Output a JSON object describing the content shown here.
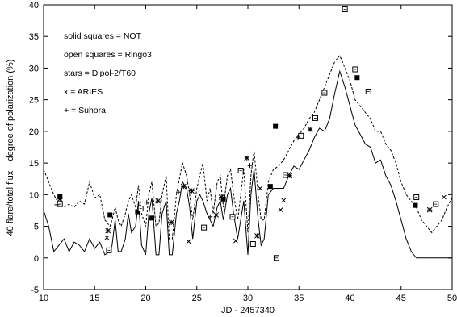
{
  "chart_data": {
    "type": "line",
    "xlabel": "JD - 2457340",
    "ylabel": "40 flare/total flux    degree of polarization (%)",
    "xlim": [
      10,
      50
    ],
    "ylim": [
      -5,
      40
    ],
    "xticks": [
      "10",
      "15",
      "20",
      "25",
      "30",
      "35",
      "40",
      "45",
      "50"
    ],
    "yticks": [
      "-5",
      "0",
      "5",
      "10",
      "15",
      "20",
      "25",
      "30",
      "35",
      "40"
    ],
    "grid": false,
    "legend_text": [
      "solid squares = NOT",
      "open squares = Ringo3",
      "stars = Dipol-2/T60",
      "x = ARIES",
      "+ = Suhora"
    ],
    "series": [
      {
        "style": "solid",
        "x": [
          10,
          10.5,
          11,
          11.5,
          12,
          12.5,
          13,
          13.5,
          14,
          14.5,
          15,
          15.5,
          16,
          16.5,
          16.7,
          17,
          17.3,
          17.6,
          18,
          18.3,
          18.6,
          19,
          19.3,
          19.6,
          20,
          20.3,
          20.6,
          21,
          21.3,
          21.6,
          22,
          22.3,
          22.6,
          23,
          23.3,
          23.6,
          24,
          24.3,
          24.6,
          25,
          25.3,
          25.6,
          26,
          26.3,
          26.6,
          27,
          27.3,
          27.6,
          28,
          28.3,
          28.6,
          29,
          29.3,
          29.6,
          30,
          30.3,
          30.6,
          31,
          31.3,
          31.6,
          32,
          32.5,
          33,
          33.5,
          34,
          34.5,
          35,
          35.5,
          36,
          36.5,
          37,
          37.5,
          38,
          38.5,
          39,
          39.5,
          40,
          40.5,
          41,
          41.5,
          42,
          42.5,
          43,
          43.5,
          44,
          44.5,
          45,
          45.5,
          46,
          46.5,
          47,
          48,
          49,
          50
        ],
        "values": [
          7.5,
          5,
          1,
          2,
          3,
          1,
          2.5,
          2,
          1,
          3,
          1.5,
          2.5,
          0.5,
          1,
          2,
          6,
          1,
          1,
          3,
          7,
          4,
          5,
          9,
          2,
          0.5,
          7,
          9.5,
          0.5,
          0.5,
          7,
          9,
          0.5,
          0.5,
          7,
          9,
          12,
          11,
          8,
          3,
          9,
          10,
          9,
          7,
          6,
          5,
          8,
          9,
          6,
          10,
          11,
          7,
          3,
          6,
          9,
          0.5,
          10,
          14,
          6,
          2,
          3,
          10,
          11,
          11,
          11,
          13,
          14.5,
          14,
          15.5,
          17,
          19,
          20.5,
          20,
          22,
          26,
          29.5,
          27,
          24,
          21,
          19.5,
          18,
          17.5,
          15,
          15.5,
          13,
          11.5,
          9,
          6,
          3,
          1,
          0,
          0,
          0,
          0,
          0
        ]
      },
      {
        "style": "dashed",
        "x": [
          10,
          10.5,
          11,
          11.5,
          12,
          12.5,
          13,
          13.5,
          14,
          14.5,
          15,
          15.5,
          16,
          16.5,
          16.7,
          17,
          17.3,
          17.6,
          18,
          18.3,
          18.6,
          19,
          19.3,
          19.6,
          20,
          20.3,
          20.6,
          21,
          21.3,
          21.6,
          22,
          22.3,
          22.6,
          23,
          23.3,
          23.6,
          24,
          24.3,
          24.6,
          25,
          25.3,
          25.6,
          26,
          26.3,
          26.6,
          27,
          27.3,
          27.6,
          28,
          28.3,
          28.6,
          29,
          29.3,
          29.6,
          30,
          30.3,
          30.6,
          31,
          31.3,
          31.6,
          32,
          32.5,
          33,
          33.5,
          34,
          34.5,
          35,
          35.5,
          36,
          36.5,
          37,
          37.5,
          38,
          38.5,
          39,
          39.5,
          40,
          40.5,
          41,
          41.5,
          42,
          42.5,
          43,
          43.5,
          44,
          44.5,
          45,
          45.5,
          46,
          46.5,
          47,
          47.5,
          48,
          48.5,
          49,
          49.5,
          50
        ],
        "values": [
          14,
          12,
          10,
          8.5,
          8,
          8.5,
          8,
          9,
          8.5,
          12,
          9.5,
          10,
          6,
          5,
          6,
          8,
          6,
          5,
          7,
          9,
          10,
          8,
          11.5,
          7,
          5,
          10,
          12,
          5,
          5.5,
          10,
          13,
          3,
          3,
          10,
          12.5,
          15,
          13,
          10,
          6,
          11,
          13,
          15,
          9,
          11,
          7,
          12,
          13,
          8,
          13,
          14,
          10,
          6,
          10,
          14,
          4,
          13,
          17,
          10,
          6,
          6,
          12,
          14,
          14.5,
          15.5,
          17,
          18.5,
          19.5,
          20.5,
          22,
          23,
          25,
          27,
          29,
          31,
          32,
          30,
          28,
          25,
          24,
          23,
          22,
          20,
          20,
          18,
          17,
          15,
          12,
          10,
          9,
          8,
          6,
          5,
          4,
          5,
          6,
          8,
          9.5
        ]
      }
    ],
    "markers": {
      "solid_squares": [
        [
          11.6,
          9.7
        ],
        [
          16.5,
          6.8
        ],
        [
          19.2,
          7.3
        ],
        [
          20.6,
          6.3
        ],
        [
          27.6,
          9.3
        ],
        [
          32.2,
          11.3
        ],
        [
          32.7,
          20.8
        ],
        [
          40.7,
          28.5
        ],
        [
          46.4,
          8.3
        ]
      ],
      "open_squares": [
        [
          11.6,
          8.5
        ],
        [
          16.4,
          1.2
        ],
        [
          19.5,
          7.8
        ],
        [
          25.7,
          4.8
        ],
        [
          28.5,
          6.5
        ],
        [
          29.3,
          13.8
        ],
        [
          30.5,
          2.2
        ],
        [
          32.8,
          0
        ],
        [
          33.7,
          13.1
        ],
        [
          35.2,
          19.3
        ],
        [
          36.6,
          22.1
        ],
        [
          37.5,
          26.1
        ],
        [
          39.5,
          39.3
        ],
        [
          40.5,
          29.8
        ],
        [
          41.8,
          26.3
        ],
        [
          46.5,
          9.6
        ],
        [
          48.4,
          8.5
        ]
      ],
      "stars": [
        [
          11.6,
          9.3
        ],
        [
          16.3,
          4.3
        ],
        [
          21.2,
          9
        ],
        [
          22.5,
          5.6
        ],
        [
          23.7,
          11.3
        ],
        [
          24.5,
          10.6
        ],
        [
          26.9,
          6.8
        ],
        [
          27.4,
          9.6
        ],
        [
          29.9,
          15.8
        ],
        [
          30.9,
          3.5
        ],
        [
          34.1,
          13
        ],
        [
          36.1,
          20.3
        ],
        [
          47.8,
          7.6
        ]
      ],
      "x": [
        [
          16.2,
          3.2
        ],
        [
          24.2,
          2.6
        ],
        [
          28.8,
          2.7
        ],
        [
          31.2,
          11
        ],
        [
          33.2,
          7.6
        ],
        [
          33.5,
          9.1
        ],
        [
          49.2,
          9.6
        ]
      ],
      "plus": [
        [
          11.3,
          8.4
        ],
        [
          20.1,
          8.8
        ],
        [
          23.2,
          10.4
        ],
        [
          26.3,
          6.5
        ],
        [
          30.2,
          14.6
        ],
        [
          34.9,
          19.1
        ]
      ]
    }
  }
}
